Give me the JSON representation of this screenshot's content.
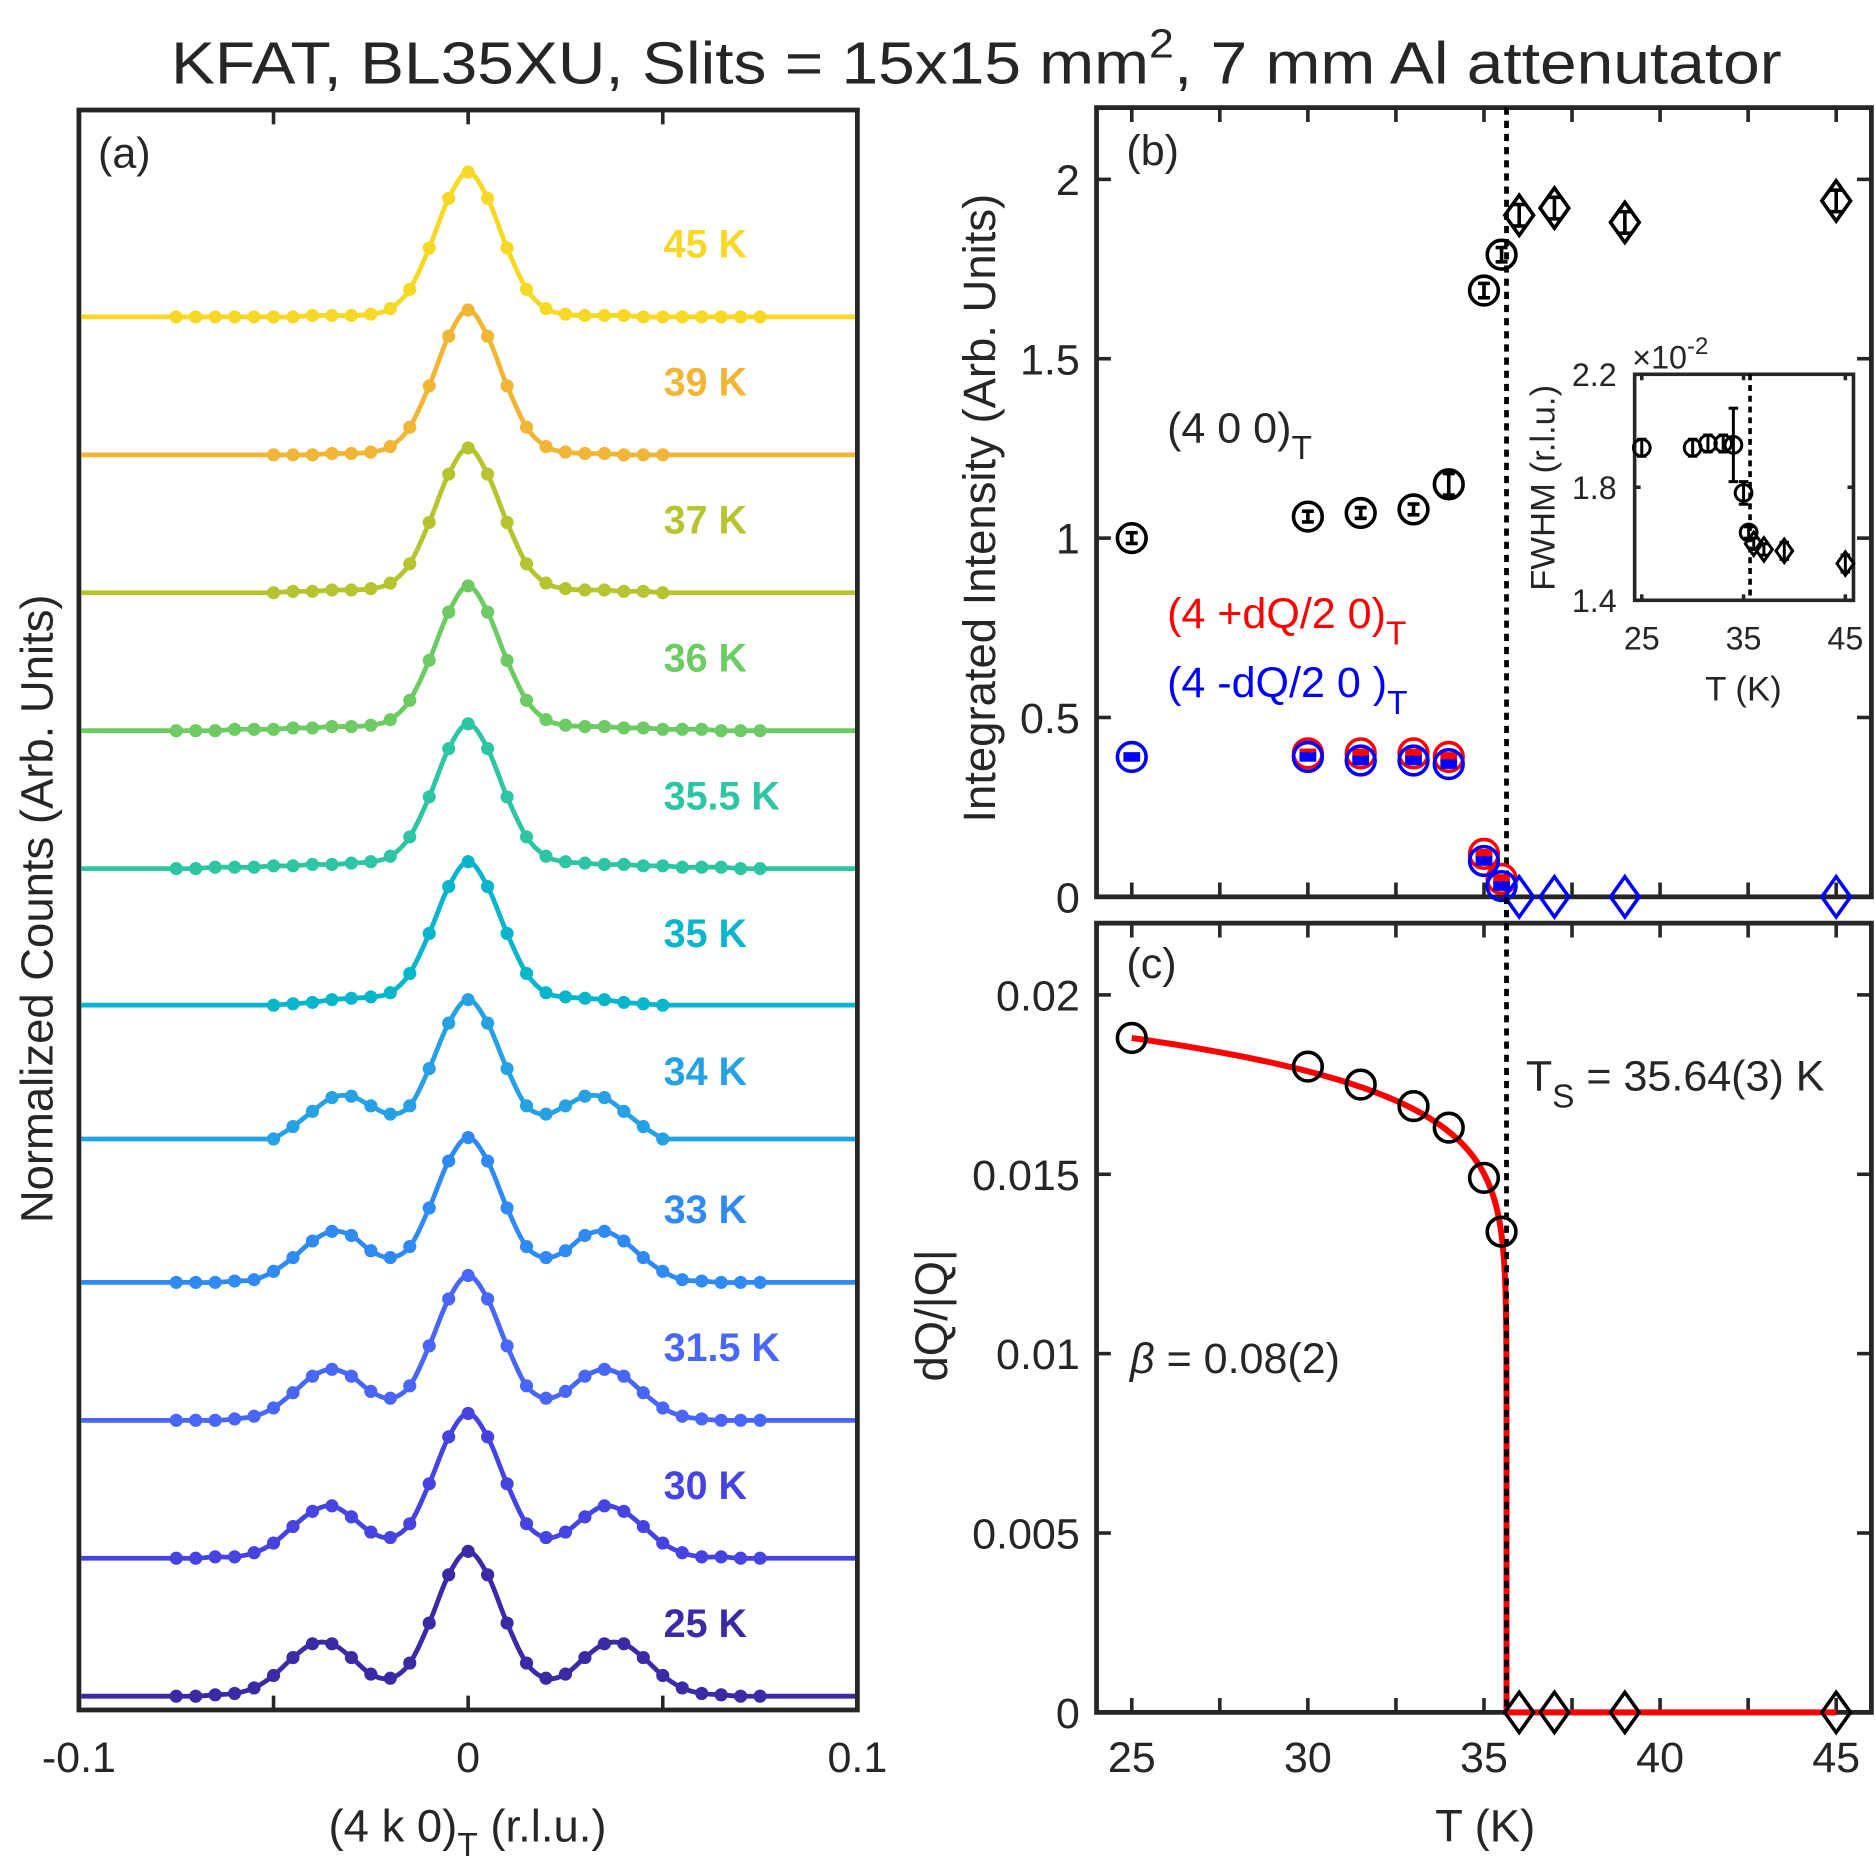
{
  "title": {
    "main": "KFAT, BL35XU, Slits = 15x15 mm",
    "sup": "2",
    "rest": ", 7 mm Al attenutator"
  },
  "chart_data": [
    {
      "panel_label": "(a)",
      "type": "line",
      "xlabel": {
        "main": "(4 k 0)",
        "sub": "T",
        "rest": " (r.l.u.)"
      },
      "ylabel": "Normalized Counts (Arb. Units)",
      "xlim": [
        -0.1,
        0.1
      ],
      "ylim": [
        -0.1,
        11.5
      ],
      "xticks": [
        -0.1,
        -0.05,
        0,
        0.05,
        0.1
      ],
      "xtick_labels": [
        "-0.1",
        "",
        "0",
        "",
        "0.1"
      ],
      "x_grids": {
        "wide": [
          -0.075,
          -0.07,
          -0.065,
          -0.06,
          -0.055,
          -0.05,
          -0.045,
          -0.04,
          -0.035,
          -0.03,
          -0.025,
          -0.02,
          -0.015,
          -0.01,
          -0.005,
          0,
          0.005,
          0.01,
          0.015,
          0.02,
          0.025,
          0.03,
          0.035,
          0.04,
          0.045,
          0.05,
          0.055,
          0.06,
          0.065,
          0.07,
          0.075
        ],
        "narrow": [
          -0.05,
          -0.045,
          -0.04,
          -0.035,
          -0.03,
          -0.025,
          -0.02,
          -0.015,
          -0.01,
          -0.005,
          0,
          0.005,
          0.01,
          0.015,
          0.02,
          0.025,
          0.03,
          0.035,
          0.04,
          0.045,
          0.05
        ]
      },
      "series": [
        {
          "name": "25 K",
          "color": "#3a2aa6",
          "offset": 0,
          "grid": "wide",
          "y": [
            0,
            0,
            0.01,
            0.02,
            0.06,
            0.15,
            0.28,
            0.38,
            0.38,
            0.28,
            0.16,
            0.13,
            0.24,
            0.53,
            0.88,
            1.05,
            0.88,
            0.53,
            0.24,
            0.13,
            0.16,
            0.28,
            0.38,
            0.38,
            0.28,
            0.15,
            0.06,
            0.02,
            0.01,
            0,
            0
          ]
        },
        {
          "name": "30 K",
          "color": "#4544e0",
          "offset": 1,
          "grid": "wide",
          "y": [
            0,
            0,
            0.01,
            0.01,
            0.04,
            0.11,
            0.23,
            0.34,
            0.38,
            0.3,
            0.19,
            0.15,
            0.25,
            0.54,
            0.88,
            1.05,
            0.88,
            0.54,
            0.25,
            0.15,
            0.19,
            0.3,
            0.38,
            0.34,
            0.23,
            0.11,
            0.04,
            0.01,
            0.01,
            0,
            0
          ]
        },
        {
          "name": "31.5 K",
          "color": "#4866f8",
          "offset": 2,
          "grid": "wide",
          "y": [
            0,
            0,
            0,
            0.01,
            0.03,
            0.09,
            0.2,
            0.32,
            0.37,
            0.32,
            0.21,
            0.16,
            0.25,
            0.54,
            0.88,
            1.05,
            0.88,
            0.54,
            0.25,
            0.16,
            0.21,
            0.32,
            0.37,
            0.32,
            0.2,
            0.09,
            0.03,
            0.01,
            0,
            0,
            0
          ]
        },
        {
          "name": "33 K",
          "color": "#2f8af4",
          "offset": 3,
          "grid": "wide",
          "y": [
            0,
            0,
            0,
            0.01,
            0.02,
            0.08,
            0.18,
            0.3,
            0.37,
            0.34,
            0.23,
            0.18,
            0.26,
            0.54,
            0.88,
            1.05,
            0.88,
            0.54,
            0.26,
            0.18,
            0.23,
            0.34,
            0.37,
            0.3,
            0.18,
            0.08,
            0.02,
            0.01,
            0,
            0,
            0
          ]
        },
        {
          "name": "34 K",
          "color": "#25a1e4",
          "offset": 4,
          "grid": "narrow",
          "y": [
            0.04,
            0.13,
            0.24,
            0.34,
            0.35,
            0.28,
            0.22,
            0.28,
            0.55,
            0.88,
            1.05,
            0.88,
            0.55,
            0.28,
            0.22,
            0.28,
            0.35,
            0.34,
            0.24,
            0.13,
            0.04
          ]
        },
        {
          "name": "35 K",
          "color": "#08b6cc",
          "offset": 5,
          "grid": "narrow",
          "y": [
            0.01,
            0.02,
            0.03,
            0.05,
            0.06,
            0.07,
            0.1,
            0.24,
            0.53,
            0.87,
            1.05,
            0.87,
            0.53,
            0.24,
            0.1,
            0.07,
            0.06,
            0.05,
            0.03,
            0.02,
            0.01
          ]
        },
        {
          "name": "35.5 K",
          "color": "#2ec5a4",
          "offset": 6,
          "grid": "wide",
          "y": [
            0,
            0,
            0.01,
            0.01,
            0.01,
            0.02,
            0.02,
            0.03,
            0.03,
            0.04,
            0.05,
            0.09,
            0.23,
            0.52,
            0.87,
            1.05,
            0.87,
            0.52,
            0.23,
            0.09,
            0.05,
            0.04,
            0.03,
            0.03,
            0.02,
            0.02,
            0.01,
            0.01,
            0.01,
            0,
            0
          ]
        },
        {
          "name": "36 K",
          "color": "#6ccb63",
          "offset": 7,
          "grid": "wide",
          "y": [
            0,
            0,
            0,
            0.01,
            0.01,
            0.01,
            0.02,
            0.02,
            0.03,
            0.03,
            0.04,
            0.08,
            0.22,
            0.51,
            0.86,
            1.05,
            0.86,
            0.51,
            0.22,
            0.08,
            0.04,
            0.03,
            0.03,
            0.02,
            0.02,
            0.01,
            0.01,
            0.01,
            0,
            0,
            0
          ]
        },
        {
          "name": "37 K",
          "color": "#b6c52f",
          "offset": 8,
          "grid": "narrow",
          "y": [
            0,
            0.01,
            0.01,
            0.02,
            0.02,
            0.03,
            0.07,
            0.21,
            0.51,
            0.86,
            1.05,
            0.86,
            0.51,
            0.21,
            0.07,
            0.03,
            0.02,
            0.02,
            0.01,
            0.01,
            0
          ]
        },
        {
          "name": "39 K",
          "color": "#f2b637",
          "offset": 9,
          "grid": "narrow",
          "y": [
            0,
            0,
            0,
            0.01,
            0.01,
            0.02,
            0.06,
            0.2,
            0.5,
            0.86,
            1.05,
            0.86,
            0.5,
            0.2,
            0.06,
            0.02,
            0.01,
            0.01,
            0,
            0,
            0
          ]
        },
        {
          "name": "45 K",
          "color": "#f7d824",
          "offset": 10,
          "grid": "wide",
          "y": [
            0,
            0,
            0,
            0,
            0,
            0,
            0,
            0.01,
            0.01,
            0.01,
            0.02,
            0.06,
            0.2,
            0.5,
            0.86,
            1.05,
            0.86,
            0.5,
            0.2,
            0.06,
            0.02,
            0.01,
            0.01,
            0.01,
            0,
            0,
            0,
            0,
            0,
            0,
            0
          ]
        }
      ]
    },
    {
      "panel_label": "(b)",
      "type": "scatter",
      "ylabel": "Integrated Intensity (Arb. Units)",
      "xlim": [
        24,
        46
      ],
      "ylim": [
        0,
        2.2
      ],
      "xticks": [
        25,
        27.5,
        30,
        32.5,
        35,
        37.5,
        40,
        42.5,
        45
      ],
      "yticks": [
        0,
        0.5,
        1,
        1.5,
        2
      ],
      "ytick_labels": [
        "0",
        "0.5",
        "1",
        "1.5",
        "2"
      ],
      "Ts_line": 35.64,
      "annotations": [
        {
          "main": "(4 0 0)",
          "sub": "T",
          "color": "#000000"
        },
        {
          "main": "(4 +dQ/2 0)",
          "sub": "T",
          "color": "#ff0000"
        },
        {
          "main": "(4 -dQ/2 0 )",
          "sub": "T",
          "color": "#0000ff"
        }
      ],
      "series": [
        {
          "marker": "circle",
          "color": "#000000",
          "x": [
            25,
            30,
            31.5,
            33,
            34,
            35,
            35.5
          ],
          "y": [
            1.0,
            1.06,
            1.07,
            1.08,
            1.15,
            1.69,
            1.79
          ],
          "yerr": [
            0.015,
            0.015,
            0.015,
            0.015,
            0.03,
            0.02,
            0.02
          ]
        },
        {
          "marker": "diamond",
          "color": "#000000",
          "x": [
            36,
            37,
            39,
            45
          ],
          "y": [
            1.9,
            1.92,
            1.88,
            1.94
          ],
          "yerr": [
            0.03,
            0.03,
            0.03,
            0.03
          ]
        },
        {
          "marker": "circle",
          "color": "#ff0000",
          "x": [
            30,
            31.5,
            33,
            34,
            35,
            35.5
          ],
          "y": [
            0.4,
            0.4,
            0.4,
            0.39,
            0.12,
            0.05
          ],
          "yerr": [
            0.01,
            0.01,
            0.01,
            0.01,
            0.01,
            0.01
          ]
        },
        {
          "marker": "circle",
          "color": "#0000ff",
          "x": [
            25,
            30,
            31.5,
            33,
            34,
            35,
            35.5
          ],
          "y": [
            0.39,
            0.39,
            0.38,
            0.38,
            0.37,
            0.1,
            0.03
          ],
          "yerr": [
            0.01,
            0.01,
            0.01,
            0.01,
            0.01,
            0.01,
            0.01
          ]
        },
        {
          "marker": "diamond",
          "color": "#0000ff",
          "x": [
            36,
            37,
            39,
            45
          ],
          "y": [
            0,
            0,
            0,
            0
          ],
          "yerr": [
            0,
            0,
            0,
            0
          ]
        }
      ],
      "inset": {
        "type": "scatter",
        "ylabel": "FWHM (r.l.u.)",
        "xlabel": "T (K)",
        "multiplier": {
          "base": "×10",
          "exp": "-2"
        },
        "xlim": [
          24.3,
          45.8
        ],
        "ylim": [
          1.4,
          2.2
        ],
        "xticks": [
          25,
          35,
          45
        ],
        "xtick_labels": [
          "25",
          "35",
          "45"
        ],
        "yticks": [
          1.4,
          1.8,
          2.2
        ],
        "ytick_labels": [
          "1.4",
          "1.8",
          "2.2"
        ],
        "Ts_line": 35.64,
        "series": [
          {
            "marker": "circle",
            "color": "#000000",
            "x": [
              25,
              30,
              31.5,
              33,
              34,
              35,
              35.5
            ],
            "y": [
              1.94,
              1.94,
              1.955,
              1.955,
              1.95,
              1.78,
              1.64
            ],
            "yerr": [
              0.03,
              0.03,
              0.03,
              0.03,
              0.13,
              0.04,
              0.02
            ]
          },
          {
            "marker": "diamond",
            "color": "#000000",
            "x": [
              36,
              37,
              39,
              45
            ],
            "y": [
              1.6,
              1.58,
              1.575,
              1.53
            ],
            "yerr": [
              0.02,
              0.02,
              0.03,
              0.03
            ]
          }
        ]
      }
    },
    {
      "panel_label": "(c)",
      "type": "scatter",
      "ylabel": "dQ/|Q|",
      "xlabel": "T (K)",
      "xlim": [
        24,
        46
      ],
      "ylim": [
        0,
        0.022
      ],
      "xticks": [
        25,
        27.5,
        30,
        32.5,
        35,
        37.5,
        40,
        42.5,
        45
      ],
      "xtick_labels": [
        "25",
        "",
        "30",
        "",
        "35",
        "",
        "40",
        "",
        "45"
      ],
      "yticks": [
        0,
        0.005,
        0.01,
        0.015,
        0.02
      ],
      "ytick_labels": [
        "0",
        "0.005",
        "0.01",
        "0.015",
        "0.02"
      ],
      "Ts_line": 35.64,
      "series": [
        {
          "marker": "circle",
          "color": "#000000",
          "x": [
            25,
            30,
            31.5,
            33,
            34,
            35,
            35.5
          ],
          "y": [
            0.0188,
            0.018,
            0.0175,
            0.0169,
            0.0163,
            0.0149,
            0.0134
          ]
        },
        {
          "marker": "diamond",
          "color": "#000000",
          "x": [
            36,
            37,
            39,
            45
          ],
          "y": [
            0,
            0,
            0,
            0
          ]
        }
      ],
      "fit": {
        "color": "#ff0000",
        "Ts": 35.64,
        "beta": 0.08,
        "A": 0.01556,
        "x_end": 45
      },
      "annotations": {
        "ts": {
          "T": "T",
          "sub": "S",
          "rest": " = 35.64(3) K"
        },
        "beta": {
          "sym": "β",
          "rest": " = 0.08(2)"
        }
      }
    }
  ]
}
